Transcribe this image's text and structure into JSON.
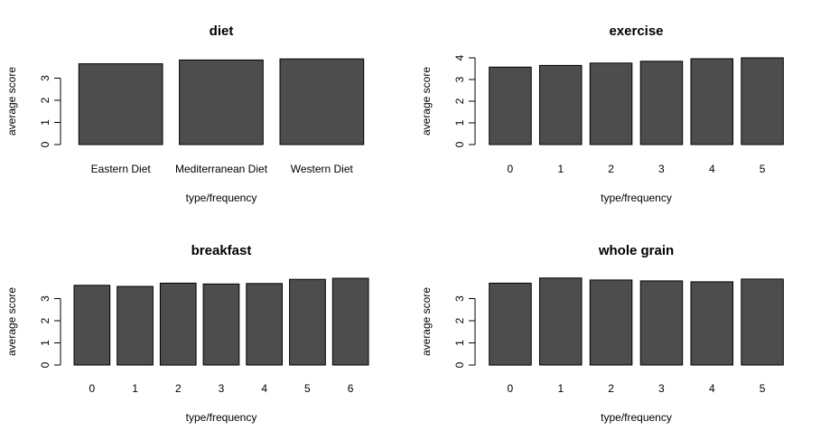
{
  "chart_data": [
    {
      "type": "bar",
      "title": "diet",
      "xlabel": "type/frequency",
      "ylabel": "average score",
      "categories": [
        "Eastern Diet",
        "Mediterranean Diet",
        "Western Diet"
      ],
      "values": [
        3.65,
        3.82,
        3.87
      ],
      "ylim": [
        0,
        3.9
      ],
      "yticks": [
        "0",
        "1",
        "2",
        "3"
      ],
      "bar_color": "#4d4d4d"
    },
    {
      "type": "bar",
      "title": "exercise",
      "xlabel": "type/frequency",
      "ylabel": "average score",
      "categories": [
        "0",
        "1",
        "2",
        "3",
        "4",
        "5"
      ],
      "values": [
        3.57,
        3.65,
        3.76,
        3.84,
        3.96,
        4.0
      ],
      "ylim": [
        0,
        4.05
      ],
      "yticks": [
        "0",
        "1",
        "2",
        "3",
        "4"
      ],
      "bar_color": "#4d4d4d"
    },
    {
      "type": "bar",
      "title": "breakfast",
      "xlabel": "type/frequency",
      "ylabel": "average score",
      "categories": [
        "0",
        "1",
        "2",
        "3",
        "4",
        "5",
        "6"
      ],
      "values": [
        3.6,
        3.55,
        3.7,
        3.66,
        3.68,
        3.87,
        3.92
      ],
      "ylim": [
        0,
        3.96
      ],
      "yticks": [
        "0",
        "1",
        "2",
        "3"
      ],
      "bar_color": "#4d4d4d"
    },
    {
      "type": "bar",
      "title": "whole grain",
      "xlabel": "type/frequency",
      "ylabel": "average score",
      "categories": [
        "0",
        "1",
        "2",
        "3",
        "4",
        "5"
      ],
      "values": [
        3.7,
        3.93,
        3.84,
        3.8,
        3.76,
        3.88
      ],
      "ylim": [
        0,
        3.97
      ],
      "yticks": [
        "0",
        "1",
        "2",
        "3"
      ],
      "bar_color": "#4d4d4d"
    }
  ]
}
